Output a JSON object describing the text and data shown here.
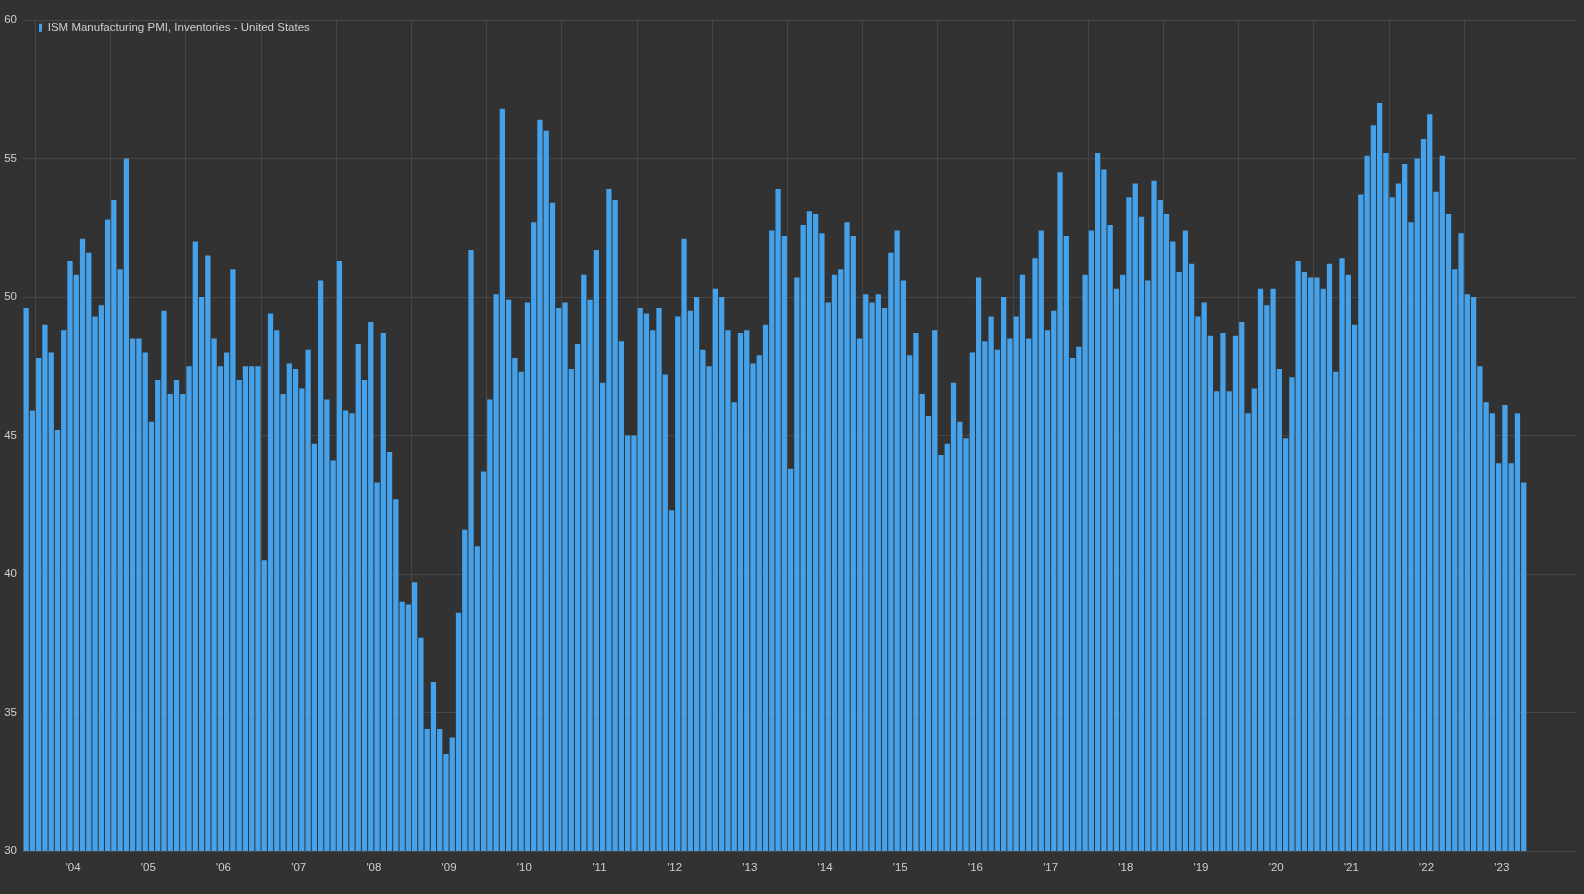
{
  "chart_data": {
    "type": "bar",
    "legend": "top left",
    "grid": true,
    "x": [
      "2003-11",
      "2003-12",
      "2004-01",
      "2004-02",
      "2004-03",
      "2004-04",
      "2004-05",
      "2004-06",
      "2004-07",
      "2004-08",
      "2004-09",
      "2004-10",
      "2004-11",
      "2004-12",
      "2005-01",
      "2005-02",
      "2005-03",
      "2005-04",
      "2005-05",
      "2005-06",
      "2005-07",
      "2005-08",
      "2005-09",
      "2005-10",
      "2005-11",
      "2005-12",
      "2006-01",
      "2006-02",
      "2006-03",
      "2006-04",
      "2006-05",
      "2006-06",
      "2006-07",
      "2006-08",
      "2006-09",
      "2006-10",
      "2006-11",
      "2006-12",
      "2007-01",
      "2007-02",
      "2007-03",
      "2007-04",
      "2007-05",
      "2007-06",
      "2007-07",
      "2007-08",
      "2007-09",
      "2007-10",
      "2007-11",
      "2007-12",
      "2008-01",
      "2008-02",
      "2008-03",
      "2008-04",
      "2008-05",
      "2008-06",
      "2008-07",
      "2008-08",
      "2008-09",
      "2008-10",
      "2008-11",
      "2008-12",
      "2009-01",
      "2009-02",
      "2009-03",
      "2009-04",
      "2009-05",
      "2009-06",
      "2009-07",
      "2009-08",
      "2009-09",
      "2009-10",
      "2009-11",
      "2009-12",
      "2010-01",
      "2010-02",
      "2010-03",
      "2010-04",
      "2010-05",
      "2010-06",
      "2010-07",
      "2010-08",
      "2010-09",
      "2010-10",
      "2010-11",
      "2010-12",
      "2011-01",
      "2011-02",
      "2011-03",
      "2011-04",
      "2011-05",
      "2011-06",
      "2011-07",
      "2011-08",
      "2011-09",
      "2011-10",
      "2011-11",
      "2011-12",
      "2012-01",
      "2012-02",
      "2012-03",
      "2012-04",
      "2012-05",
      "2012-06",
      "2012-07",
      "2012-08",
      "2012-09",
      "2012-10",
      "2012-11",
      "2012-12",
      "2013-01",
      "2013-02",
      "2013-03",
      "2013-04",
      "2013-05",
      "2013-06",
      "2013-07",
      "2013-08",
      "2013-09",
      "2013-10",
      "2013-11",
      "2013-12",
      "2014-01",
      "2014-02",
      "2014-03",
      "2014-04",
      "2014-05",
      "2014-06",
      "2014-07",
      "2014-08",
      "2014-09",
      "2014-10",
      "2014-11",
      "2014-12",
      "2015-01",
      "2015-02",
      "2015-03",
      "2015-04",
      "2015-05",
      "2015-06",
      "2015-07",
      "2015-08",
      "2015-09",
      "2015-10",
      "2015-11",
      "2015-12",
      "2016-01",
      "2016-02",
      "2016-03",
      "2016-04",
      "2016-05",
      "2016-06",
      "2016-07",
      "2016-08",
      "2016-09",
      "2016-10",
      "2016-11",
      "2016-12",
      "2017-01",
      "2017-02",
      "2017-03",
      "2017-04",
      "2017-05",
      "2017-06",
      "2017-07",
      "2017-08",
      "2017-09",
      "2017-10",
      "2017-11",
      "2017-12",
      "2018-01",
      "2018-02",
      "2018-03",
      "2018-04",
      "2018-05",
      "2018-06",
      "2018-07",
      "2018-08",
      "2018-09",
      "2018-10",
      "2018-11",
      "2018-12",
      "2019-01",
      "2019-02",
      "2019-03",
      "2019-04",
      "2019-05",
      "2019-06",
      "2019-07",
      "2019-08",
      "2019-09",
      "2019-10",
      "2019-11",
      "2019-12",
      "2020-01",
      "2020-02",
      "2020-03",
      "2020-04",
      "2020-05",
      "2020-06",
      "2020-07",
      "2020-08",
      "2020-09",
      "2020-10",
      "2020-11",
      "2020-12",
      "2021-01",
      "2021-02",
      "2021-03",
      "2021-04",
      "2021-05",
      "2021-06",
      "2021-07",
      "2021-08",
      "2021-09",
      "2021-10",
      "2021-11",
      "2021-12",
      "2022-01",
      "2022-02",
      "2022-03",
      "2022-04",
      "2022-05",
      "2022-06",
      "2022-07",
      "2022-08",
      "2022-09",
      "2022-10",
      "2022-11",
      "2022-12",
      "2023-01",
      "2023-02",
      "2023-03",
      "2023-04",
      "2023-05",
      "2023-06",
      "2023-07",
      "2023-08",
      "2023-09",
      "2023-10"
    ],
    "xlim": [
      "2003-11",
      "2024-07"
    ],
    "xticks": [
      {
        "value": "2004-01",
        "label": null
      },
      {
        "value": "2004-07",
        "label": "'04"
      },
      {
        "value": "2005-01",
        "label": null
      },
      {
        "value": "2005-07",
        "label": "'05"
      },
      {
        "value": "2006-01",
        "label": null
      },
      {
        "value": "2006-07",
        "label": "'06"
      },
      {
        "value": "2007-01",
        "label": null
      },
      {
        "value": "2007-07",
        "label": "'07"
      },
      {
        "value": "2008-01",
        "label": null
      },
      {
        "value": "2008-07",
        "label": "'08"
      },
      {
        "value": "2009-01",
        "label": null
      },
      {
        "value": "2009-07",
        "label": "'09"
      },
      {
        "value": "2010-01",
        "label": null
      },
      {
        "value": "2010-07",
        "label": "'10"
      },
      {
        "value": "2011-01",
        "label": null
      },
      {
        "value": "2011-07",
        "label": "'11"
      },
      {
        "value": "2012-01",
        "label": null
      },
      {
        "value": "2012-07",
        "label": "'12"
      },
      {
        "value": "2013-01",
        "label": null
      },
      {
        "value": "2013-07",
        "label": "'13"
      },
      {
        "value": "2014-01",
        "label": null
      },
      {
        "value": "2014-07",
        "label": "'14"
      },
      {
        "value": "2015-01",
        "label": null
      },
      {
        "value": "2015-07",
        "label": "'15"
      },
      {
        "value": "2016-01",
        "label": null
      },
      {
        "value": "2016-07",
        "label": "'16"
      },
      {
        "value": "2017-01",
        "label": null
      },
      {
        "value": "2017-07",
        "label": "'17"
      },
      {
        "value": "2018-01",
        "label": null
      },
      {
        "value": "2018-07",
        "label": "'18"
      },
      {
        "value": "2019-01",
        "label": null
      },
      {
        "value": "2019-07",
        "label": "'19"
      },
      {
        "value": "2020-01",
        "label": null
      },
      {
        "value": "2020-07",
        "label": "'20"
      },
      {
        "value": "2021-01",
        "label": null
      },
      {
        "value": "2021-07",
        "label": "'21"
      },
      {
        "value": "2022-01",
        "label": null
      },
      {
        "value": "2022-07",
        "label": "'22"
      },
      {
        "value": "2023-01",
        "label": null
      },
      {
        "value": "2023-07",
        "label": "'23"
      }
    ],
    "ylim": [
      30,
      60
    ],
    "yticks": [
      30,
      35,
      40,
      45,
      50,
      55,
      60
    ],
    "series": [
      {
        "name": "ISM Manufacturing PMI, Inventories - United States",
        "color": "#45a2ea",
        "values": [
          49.6,
          45.9,
          47.8,
          49.0,
          48.0,
          45.2,
          48.8,
          51.3,
          50.8,
          52.1,
          51.6,
          49.3,
          49.7,
          52.8,
          53.5,
          51.0,
          55.0,
          48.5,
          48.5,
          48.0,
          45.5,
          47.0,
          49.5,
          46.5,
          47.0,
          46.5,
          47.5,
          52.0,
          50.0,
          51.5,
          48.5,
          47.5,
          48.0,
          51.0,
          47.0,
          47.5,
          47.5,
          47.5,
          40.5,
          49.4,
          48.8,
          46.5,
          47.6,
          47.4,
          46.7,
          48.1,
          44.7,
          50.6,
          46.3,
          44.1,
          51.3,
          45.9,
          45.8,
          48.3,
          47.0,
          49.1,
          43.3,
          48.7,
          44.4,
          42.7,
          39.0,
          38.9,
          39.7,
          37.7,
          34.4,
          36.1,
          34.4,
          33.5,
          34.1,
          38.6,
          41.6,
          51.7,
          41.0,
          43.7,
          46.3,
          50.1,
          56.8,
          49.9,
          47.8,
          47.3,
          49.8,
          52.7,
          56.4,
          56.0,
          53.4,
          49.6,
          49.8,
          47.4,
          48.3,
          50.8,
          49.9,
          51.7,
          46.9,
          53.9,
          53.5,
          48.4,
          45.0,
          45.0,
          49.6,
          49.4,
          48.8,
          49.6,
          47.2,
          42.3,
          49.3,
          52.1,
          49.5,
          50.0,
          48.1,
          47.5,
          50.3,
          50.0,
          48.8,
          46.2,
          48.7,
          48.8,
          47.6,
          47.9,
          49.0,
          52.4,
          53.9,
          52.2,
          43.8,
          50.7,
          52.6,
          53.1,
          53.0,
          52.3,
          49.8,
          50.8,
          51.0,
          52.7,
          52.2,
          48.5,
          50.1,
          49.8,
          50.1,
          49.6,
          51.6,
          52.4,
          50.6,
          47.9,
          48.7,
          46.5,
          45.7,
          48.8,
          44.3,
          44.7,
          46.9,
          45.5,
          44.9,
          48.0,
          50.7,
          48.4,
          49.3,
          48.1,
          50.0,
          48.5,
          49.3,
          50.8,
          48.5,
          51.4,
          52.4,
          48.8,
          49.5,
          54.5,
          52.2,
          47.8,
          48.2,
          50.8,
          52.4,
          55.2,
          54.6,
          52.6,
          50.3,
          50.8,
          53.6,
          54.1,
          52.9,
          50.6,
          54.2,
          53.5,
          53.0,
          52.0,
          50.9,
          52.4,
          51.2,
          49.3,
          49.8,
          48.6,
          46.6,
          48.7,
          46.6,
          48.6,
          49.1,
          45.8,
          46.7,
          50.3,
          49.7,
          50.3,
          47.4,
          44.9,
          47.1,
          51.3,
          50.9,
          50.7,
          50.7,
          50.3,
          51.2,
          47.3,
          51.4,
          50.8,
          49.0,
          53.7,
          55.1,
          56.2,
          57.0,
          55.2,
          53.6,
          54.1,
          54.8,
          52.7,
          55.0,
          55.7,
          56.6,
          53.8,
          55.1,
          53.0,
          51.0,
          52.3,
          50.1,
          50.0,
          47.5,
          46.2,
          45.8,
          44.0,
          46.1,
          44.0,
          45.8,
          43.3
        ]
      }
    ]
  }
}
